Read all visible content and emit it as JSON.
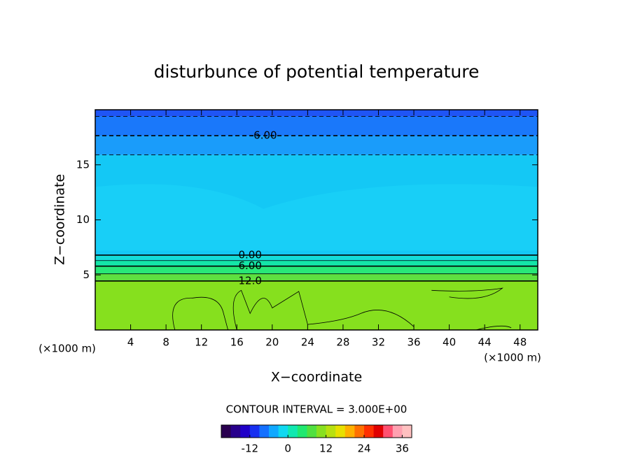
{
  "chart_data": {
    "type": "contour",
    "title": "disturbunce of potential temperature",
    "xlabel": "X−coordinate",
    "ylabel": "Z−coordinate",
    "x_unit": "(×1000 m)",
    "y_unit": "(×1000 m)",
    "xlim": [
      0,
      50
    ],
    "xticks": [
      4,
      8,
      12,
      16,
      20,
      24,
      28,
      32,
      36,
      40,
      44,
      48
    ],
    "ylim": [
      0,
      20
    ],
    "yticks": [
      5,
      10,
      15
    ],
    "contours": [
      {
        "level": -9,
        "z": 19.4
      },
      {
        "level": -6,
        "z": 17.65,
        "label": "-6.00"
      },
      {
        "level": -3,
        "z": 15.9
      },
      {
        "level": 0,
        "z": 6.8,
        "label": "0.00"
      },
      {
        "level": 3,
        "z": 6.3
      },
      {
        "level": 6,
        "z": 5.8,
        "label": "6.00"
      },
      {
        "level": 9,
        "z": 5.1
      },
      {
        "level": 12,
        "z": 4.45,
        "label": "12.0"
      }
    ],
    "negative_dashed": true,
    "fill_colors": [
      "#1f55f5",
      "#1a78fa",
      "#1a9cfa",
      "#14c8f5",
      "#14dcd8",
      "#14e6a8",
      "#28e878",
      "#5ee040",
      "#86e01e"
    ],
    "contour_interval_text": "CONTOUR INTERVAL = 3.000E+00",
    "colorbar": {
      "lim": [
        -21,
        39
      ],
      "ticks": [
        -12,
        0,
        12,
        24,
        36
      ],
      "colors": [
        "#2a0050",
        "#28008c",
        "#2000c8",
        "#1830f0",
        "#1470ff",
        "#10a8ff",
        "#10d8f0",
        "#10e8b0",
        "#20e870",
        "#50e040",
        "#88e020",
        "#b8e010",
        "#e8e000",
        "#ffb000",
        "#ff7000",
        "#ff3000",
        "#e00000",
        "#ff5070",
        "#ffa0b0",
        "#ffc0c0"
      ]
    }
  }
}
